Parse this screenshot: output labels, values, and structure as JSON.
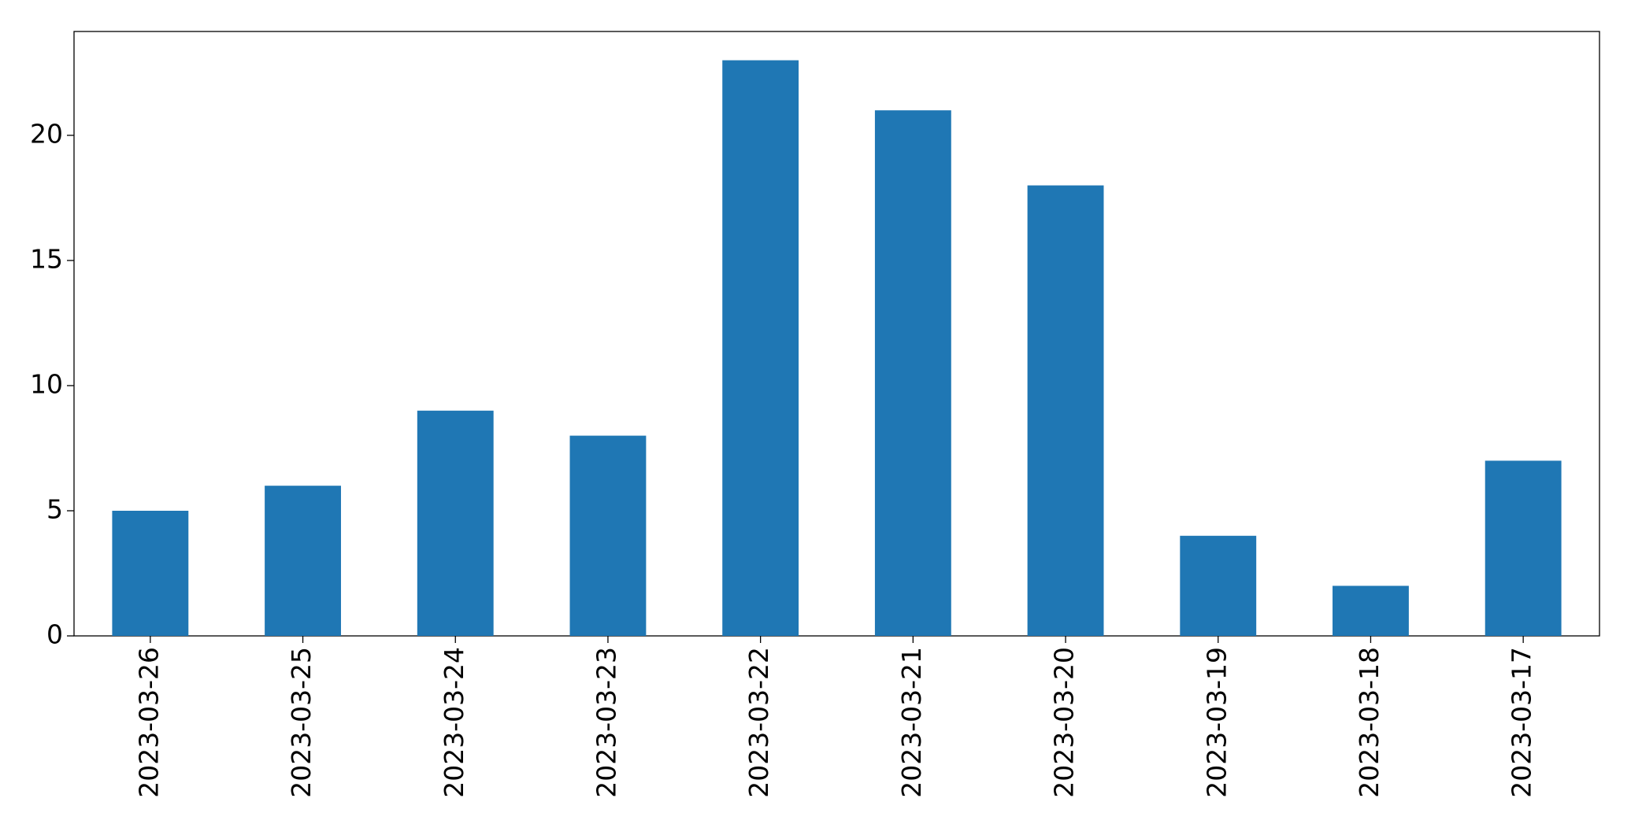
{
  "chart_data": {
    "type": "bar",
    "categories": [
      "2023-03-26",
      "2023-03-25",
      "2023-03-24",
      "2023-03-23",
      "2023-03-22",
      "2023-03-21",
      "2023-03-20",
      "2023-03-19",
      "2023-03-18",
      "2023-03-17"
    ],
    "values": [
      5,
      6,
      9,
      8,
      23,
      21,
      18,
      4,
      2,
      7
    ],
    "color": "#1f77b4",
    "ylim": [
      0,
      24.15
    ],
    "yticks": [
      0,
      5,
      10,
      15,
      20
    ],
    "grid": false
  }
}
